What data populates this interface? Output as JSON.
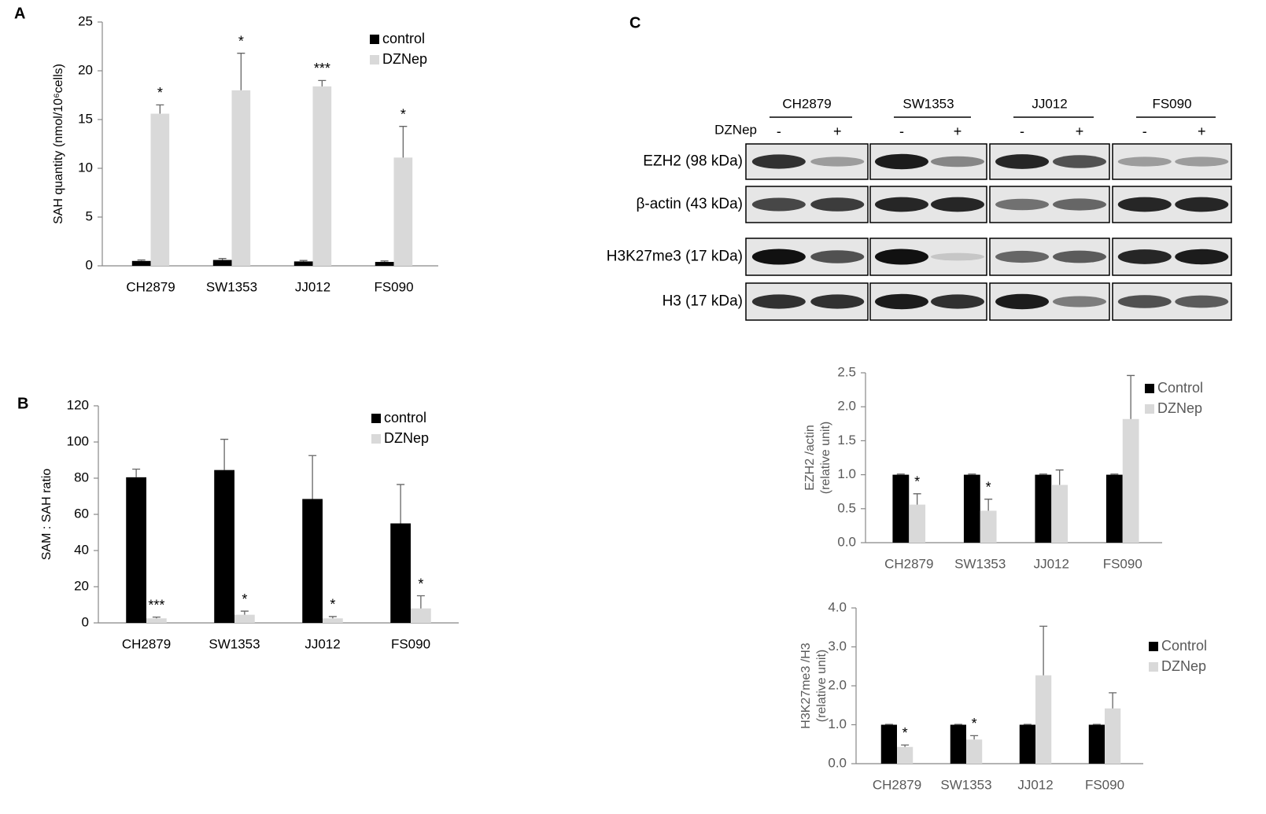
{
  "panels": [
    "A",
    "B",
    "C"
  ],
  "chart_data": [
    {
      "type": "bar",
      "ylabel": [
        "SAH quantity (nmol/10⁶cells)"
      ],
      "categories": [
        "CH2879",
        "SW1353",
        "JJ012",
        "FS090"
      ],
      "series": [
        {
          "name": "control",
          "color": "#000000",
          "values": [
            0.5,
            0.6,
            0.45,
            0.4
          ],
          "errors": [
            0.1,
            0.15,
            0.1,
            0.1
          ]
        },
        {
          "name": "DZNep",
          "color": "#d9d9d9",
          "values": [
            15.6,
            18.0,
            18.4,
            11.1
          ],
          "errors": [
            0.9,
            3.8,
            0.6,
            3.2
          ]
        }
      ],
      "significance": [
        "*",
        "*",
        "***",
        "*"
      ],
      "ylim": [
        0,
        25
      ],
      "yticks": [
        0,
        5,
        10,
        15,
        20,
        25
      ],
      "legend": "upper right"
    },
    {
      "type": "bar",
      "ylabel": [
        "SAM : SAH ratio"
      ],
      "categories": [
        "CH2879",
        "SW1353",
        "JJ012",
        "FS090"
      ],
      "series": [
        {
          "name": "control",
          "color": "#000000",
          "values": [
            80.5,
            84.5,
            68.5,
            55
          ],
          "errors": [
            4.5,
            17,
            24,
            21.5
          ]
        },
        {
          "name": "DZNep",
          "color": "#d9d9d9",
          "values": [
            2.5,
            4.5,
            2.5,
            8
          ],
          "errors": [
            0.7,
            2,
            1,
            7
          ]
        }
      ],
      "significance": [
        "***",
        "*",
        "*",
        "*"
      ],
      "ylim": [
        0,
        120
      ],
      "yticks": [
        0,
        20,
        40,
        60,
        80,
        100,
        120
      ],
      "legend": "upper right"
    },
    {
      "type": "bar",
      "ylabel": [
        "EZH2 /actin",
        "(relative unit)"
      ],
      "categories": [
        "CH2879",
        "SW1353",
        "JJ012",
        "FS090"
      ],
      "series": [
        {
          "name": "Control",
          "color": "#000000",
          "values": [
            1,
            1,
            1,
            1
          ],
          "errors": [
            0.01,
            0.01,
            0.01,
            0.01
          ]
        },
        {
          "name": "DZNep",
          "color": "#d9d9d9",
          "values": [
            0.56,
            0.47,
            0.85,
            1.82
          ],
          "errors": [
            0.16,
            0.17,
            0.22,
            0.64
          ]
        }
      ],
      "significance": [
        "*",
        "*",
        null,
        null
      ],
      "ylim": [
        0,
        2.5
      ],
      "yticks": [
        {
          "value": 0,
          "label": "0.0"
        },
        {
          "value": 0.5,
          "label": "0.5"
        },
        {
          "value": 1,
          "label": "1.0"
        },
        {
          "value": 1.5,
          "label": "1.5"
        },
        {
          "value": 2,
          "label": "2.0"
        },
        {
          "value": 2.5,
          "label": "2.5"
        }
      ],
      "legend": "upper right"
    },
    {
      "type": "bar",
      "ylabel": [
        "H3K27me3 /H3",
        "(relative unit)"
      ],
      "categories": [
        "CH2879",
        "SW1353",
        "JJ012",
        "FS090"
      ],
      "series": [
        {
          "name": "Control",
          "color": "#000000",
          "values": [
            1,
            1,
            1,
            1
          ],
          "errors": [
            0.01,
            0.01,
            0.01,
            0.01
          ]
        },
        {
          "name": "DZNep",
          "color": "#d9d9d9",
          "values": [
            0.43,
            0.62,
            2.27,
            1.42
          ],
          "errors": [
            0.05,
            0.1,
            1.26,
            0.4
          ]
        }
      ],
      "significance": [
        "*",
        "*",
        null,
        null
      ],
      "ylim": [
        0,
        4
      ],
      "yticks": [
        {
          "value": 0,
          "label": "0.0"
        },
        {
          "value": 1,
          "label": "1.0"
        },
        {
          "value": 2,
          "label": "2.0"
        },
        {
          "value": 3,
          "label": "3.0"
        },
        {
          "value": 4,
          "label": "4.0"
        }
      ],
      "legend": "upper right"
    }
  ],
  "blot": {
    "cell_lines": [
      "CH2879",
      "SW1353",
      "JJ012",
      "FS090"
    ],
    "treatment_label": "DZNep",
    "treatment_signs": [
      "-",
      "+"
    ],
    "rows": [
      "EZH2 (98 kDa)",
      "β-actin (43 kDa)",
      "H3K27me3 (17 kDa)",
      "H3 (17 kDa)"
    ]
  }
}
